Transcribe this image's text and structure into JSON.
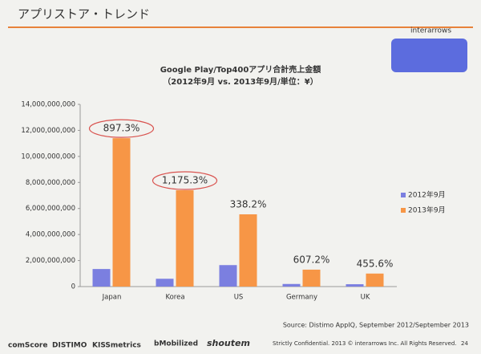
{
  "header": {
    "title": "アプリストア・トレンド",
    "logo": "interarrows"
  },
  "chart_data": {
    "type": "bar",
    "title": "Google Play/Top400アプリ合計売上金額",
    "subtitle": "（2012年9月 vs. 2013年9月/単位：¥）",
    "categories": [
      "Japan",
      "Korea",
      "US",
      "Germany",
      "UK"
    ],
    "series": [
      {
        "name": "2012年9月",
        "color": "#7b7fe0",
        "values": [
          1350000000,
          600000000,
          1650000000,
          200000000,
          180000000
        ]
      },
      {
        "name": "2013年9月",
        "color": "#f79646",
        "values": [
          11400000000,
          7400000000,
          5550000000,
          1300000000,
          1000000000
        ]
      }
    ],
    "annotations": [
      "897.3%",
      "1,175.3%",
      "338.2%",
      "607.2%",
      "455.6%"
    ],
    "ylim": [
      0,
      14000000000
    ],
    "yticks": [
      {
        "value": 0,
        "label": "0"
      },
      {
        "value": 2000000000,
        "label": "2,000,000,000"
      },
      {
        "value": 4000000000,
        "label": "4,000,000,000"
      },
      {
        "value": 6000000000,
        "label": "6,000,000,000"
      },
      {
        "value": 8000000000,
        "label": "8,000,000,000"
      },
      {
        "value": 10000000000,
        "label": "10,000,000,000"
      },
      {
        "value": 12000000000,
        "label": "12,000,000,000"
      },
      {
        "value": 14000000000,
        "label": "14,000,000,000"
      }
    ],
    "legend": "right",
    "source": "Source: Distimo AppIQ, September 2012/September 2013"
  },
  "footer": {
    "logos": [
      "comScore",
      "DISTIMO",
      "KISSmetrics",
      "bMobilized",
      "shoutem"
    ],
    "notice": "Strictly Confidential. 2013 © interarrows Inc. All Rights Reserved.",
    "page": "24"
  }
}
